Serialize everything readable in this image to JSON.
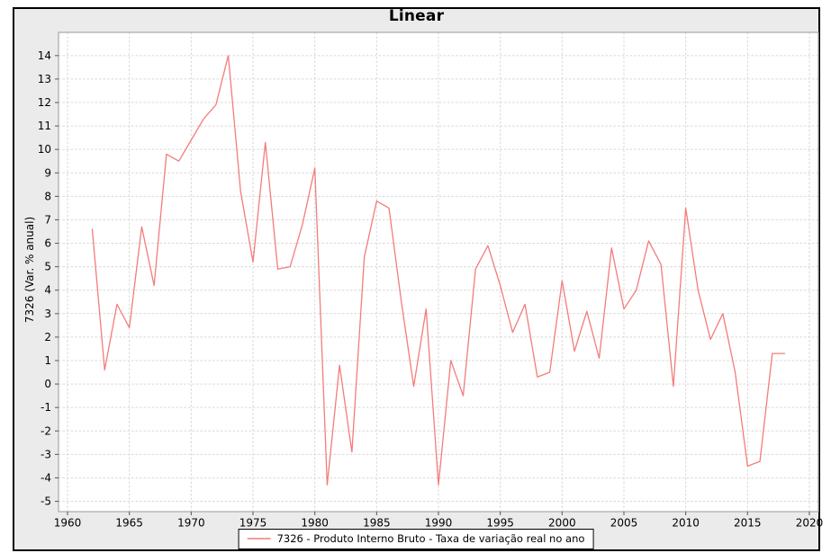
{
  "figure": {
    "background_color": "#ebebeb",
    "plot_background_color": "#ffffff",
    "frame_color": "#a8a8a8",
    "grid_color": "#d8d8d8",
    "tick_color": "#555555",
    "text_color": "#000000"
  },
  "chart_data": {
    "type": "line",
    "title": "Linear",
    "xlabel": "",
    "ylabel": "7326 (Var. % anual)",
    "grid": true,
    "grid_style": "dashed",
    "legend_position": "bottom-center",
    "xlim": [
      1959.27,
      2020.73
    ],
    "ylim": [
      -5.44,
      14.99
    ],
    "xticks": [
      1960,
      1965,
      1970,
      1975,
      1980,
      1985,
      1990,
      1995,
      2000,
      2005,
      2010,
      2015,
      2020
    ],
    "yticks": [
      -5,
      -4,
      -3,
      -2,
      -1,
      0,
      1,
      2,
      3,
      4,
      5,
      6,
      7,
      8,
      9,
      10,
      11,
      12,
      13,
      14
    ],
    "series": [
      {
        "name": "7326 - Produto Interno Bruto - Taxa de variação real no ano",
        "color": "#f37c7c",
        "x": [
          1962,
          1963,
          1964,
          1965,
          1966,
          1967,
          1968,
          1969,
          1970,
          1971,
          1972,
          1973,
          1974,
          1975,
          1976,
          1977,
          1978,
          1979,
          1980,
          1981,
          1982,
          1983,
          1984,
          1985,
          1986,
          1987,
          1988,
          1989,
          1990,
          1991,
          1992,
          1993,
          1994,
          1995,
          1996,
          1997,
          1998,
          1999,
          2000,
          2001,
          2002,
          2003,
          2004,
          2005,
          2006,
          2007,
          2008,
          2009,
          2010,
          2011,
          2012,
          2013,
          2014,
          2015,
          2016,
          2017,
          2018
        ],
        "values": [
          6.6,
          0.6,
          3.4,
          2.4,
          6.7,
          4.2,
          9.8,
          9.5,
          10.4,
          11.3,
          11.9,
          14.0,
          8.2,
          5.2,
          10.3,
          4.9,
          5.0,
          6.8,
          9.2,
          -4.3,
          0.8,
          -2.9,
          5.4,
          7.8,
          7.5,
          3.5,
          -0.1,
          3.2,
          -4.3,
          1.0,
          -0.5,
          4.9,
          5.9,
          4.2,
          2.2,
          3.4,
          0.3,
          0.5,
          4.4,
          1.4,
          3.1,
          1.1,
          5.8,
          3.2,
          4.0,
          6.1,
          5.1,
          -0.1,
          7.5,
          4.0,
          1.9,
          3.0,
          0.5,
          -3.5,
          -3.3,
          1.3,
          1.3
        ]
      }
    ]
  }
}
